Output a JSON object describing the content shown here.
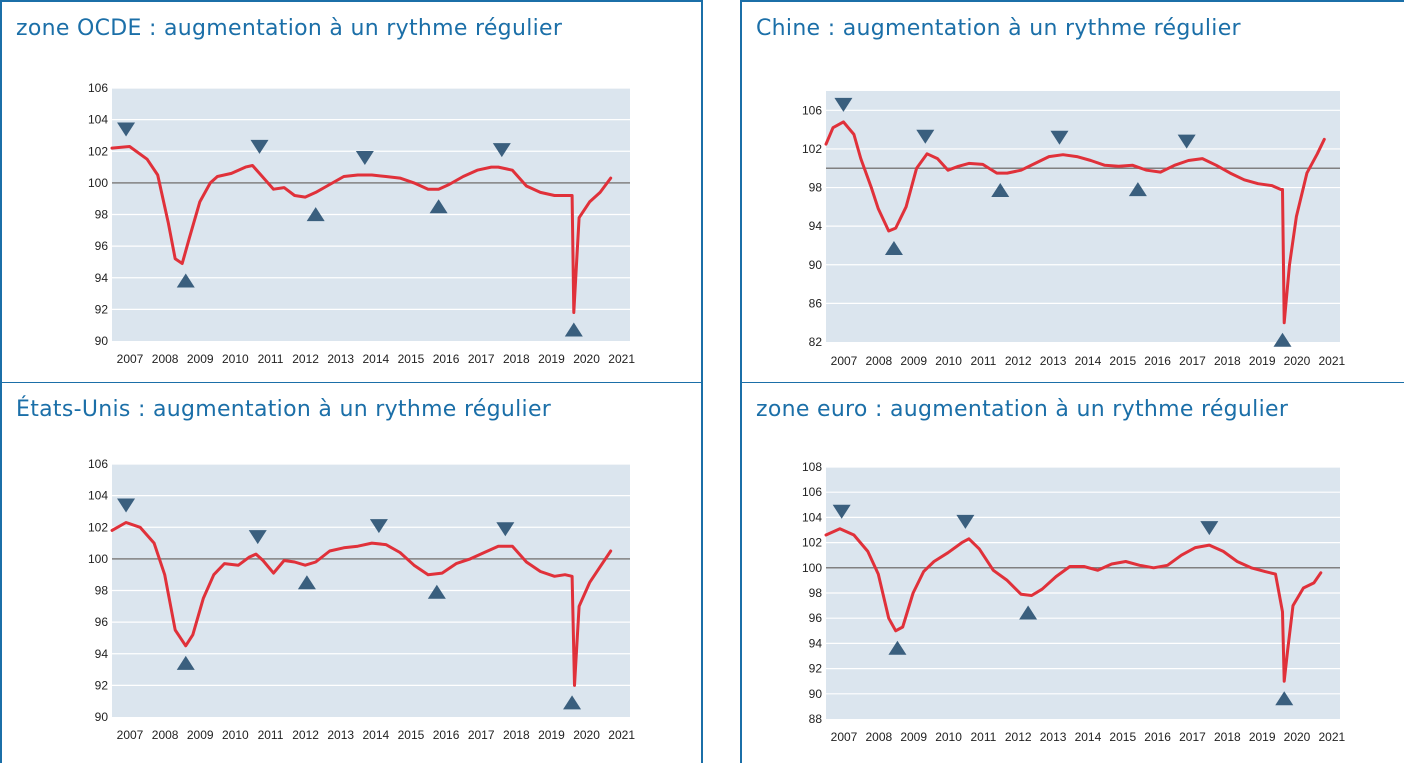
{
  "colors": {
    "title": "#1b6fa8",
    "plot_bg": "#dbe5ee",
    "line": "#e0313a",
    "baseline": "#808080",
    "marker": "#3a5f7e",
    "border": "#1b6fa8"
  },
  "chart_data": [
    {
      "type": "line",
      "title": "zone OCDE :  augmentation à un rythme régulier",
      "ylim": [
        90,
        106
      ],
      "yticks": [
        106,
        104,
        102,
        100,
        98,
        96,
        94,
        92,
        90
      ],
      "xlabels": [
        "2007",
        "2008",
        "2009",
        "2010",
        "2011",
        "2012",
        "2013",
        "2014",
        "2015",
        "2016",
        "2017",
        "2018",
        "2019",
        "2020",
        "2021"
      ],
      "baseline": 100,
      "grid": true,
      "series": [
        {
          "x": [
            2007.0,
            2007.5,
            2008.0,
            2008.3,
            2008.6,
            2008.8,
            2009.0,
            2009.2,
            2009.5,
            2009.8,
            2010.0,
            2010.4,
            2010.8,
            2011.0,
            2011.2,
            2011.6,
            2011.9,
            2012.2,
            2012.5,
            2012.8,
            2013.2,
            2013.6,
            2014.0,
            2014.4,
            2014.8,
            2015.2,
            2015.6,
            2016.0,
            2016.3,
            2016.6,
            2017.0,
            2017.4,
            2017.8,
            2018.0,
            2018.4,
            2018.8,
            2019.2,
            2019.6,
            2020.0,
            2020.1,
            2020.15,
            2020.3,
            2020.6,
            2020.9,
            2021.2
          ],
          "y": [
            102.2,
            102.3,
            101.5,
            100.5,
            97.5,
            95.2,
            94.9,
            96.5,
            98.8,
            100.0,
            100.4,
            100.6,
            101.0,
            101.1,
            100.6,
            99.6,
            99.7,
            99.2,
            99.1,
            99.4,
            99.9,
            100.4,
            100.5,
            100.5,
            100.4,
            100.3,
            100.0,
            99.6,
            99.6,
            99.9,
            100.4,
            100.8,
            101.0,
            101.0,
            100.8,
            99.8,
            99.4,
            99.2,
            99.2,
            99.2,
            91.8,
            97.8,
            98.8,
            99.4,
            100.3
          ]
        }
      ],
      "markers": [
        {
          "dir": "down",
          "x": 2007.4,
          "y": 102.3
        },
        {
          "dir": "up",
          "x": 2009.1,
          "y": 94.9
        },
        {
          "dir": "down",
          "x": 2011.2,
          "y": 101.2
        },
        {
          "dir": "up",
          "x": 2012.8,
          "y": 99.1
        },
        {
          "dir": "down",
          "x": 2014.2,
          "y": 100.5
        },
        {
          "dir": "up",
          "x": 2016.3,
          "y": 99.6
        },
        {
          "dir": "down",
          "x": 2018.1,
          "y": 101.0
        },
        {
          "dir": "up",
          "x": 2020.15,
          "y": 91.8
        }
      ]
    },
    {
      "type": "line",
      "title": "Chine : augmentation à un rythme régulier",
      "ylim": [
        82,
        108
      ],
      "yticks": [
        106,
        102,
        98,
        94,
        90,
        86,
        82
      ],
      "xlabels": [
        "2007",
        "2008",
        "2009",
        "2010",
        "2011",
        "2012",
        "2013",
        "2014",
        "2015",
        "2016",
        "2017",
        "2018",
        "2019",
        "2020",
        "2021"
      ],
      "baseline": 100,
      "grid": true,
      "series": [
        {
          "x": [
            2007.0,
            2007.2,
            2007.5,
            2007.8,
            2008.0,
            2008.3,
            2008.5,
            2008.8,
            2009.0,
            2009.3,
            2009.6,
            2009.9,
            2010.2,
            2010.5,
            2010.8,
            2011.1,
            2011.5,
            2011.9,
            2012.2,
            2012.6,
            2013.0,
            2013.4,
            2013.8,
            2014.2,
            2014.6,
            2015.0,
            2015.4,
            2015.8,
            2016.2,
            2016.6,
            2017.0,
            2017.4,
            2017.8,
            2018.2,
            2018.6,
            2019.0,
            2019.4,
            2019.8,
            2020.05,
            2020.1,
            2020.15,
            2020.3,
            2020.5,
            2020.8,
            2021.1,
            2021.3
          ],
          "y": [
            102.5,
            104.2,
            104.8,
            103.5,
            101.0,
            98.0,
            95.8,
            93.5,
            93.8,
            96.0,
            100.0,
            101.5,
            101.0,
            99.8,
            100.2,
            100.5,
            100.4,
            99.5,
            99.5,
            99.8,
            100.5,
            101.2,
            101.4,
            101.2,
            100.8,
            100.3,
            100.2,
            100.3,
            99.8,
            99.6,
            100.3,
            100.8,
            101.0,
            100.3,
            99.5,
            98.8,
            98.4,
            98.2,
            97.8,
            97.8,
            84.0,
            90.0,
            95.0,
            99.5,
            101.5,
            103.0
          ]
        }
      ],
      "markers": [
        {
          "dir": "down",
          "x": 2007.5,
          "y": 104.8
        },
        {
          "dir": "up",
          "x": 2008.95,
          "y": 93.5
        },
        {
          "dir": "down",
          "x": 2009.85,
          "y": 101.5
        },
        {
          "dir": "up",
          "x": 2012.0,
          "y": 99.5
        },
        {
          "dir": "down",
          "x": 2013.7,
          "y": 101.4
        },
        {
          "dir": "up",
          "x": 2015.95,
          "y": 99.6
        },
        {
          "dir": "down",
          "x": 2017.35,
          "y": 101.0
        },
        {
          "dir": "up",
          "x": 2020.1,
          "y": 84.0
        }
      ]
    },
    {
      "type": "line",
      "title": "États-Unis : augmentation à un rythme régulier",
      "ylim": [
        90,
        106
      ],
      "yticks": [
        106,
        104,
        102,
        100,
        98,
        96,
        94,
        92,
        90
      ],
      "xlabels": [
        "2007",
        "2008",
        "2009",
        "2010",
        "2011",
        "2012",
        "2013",
        "2014",
        "2015",
        "2016",
        "2017",
        "2018",
        "2019",
        "2020",
        "2021"
      ],
      "baseline": 100,
      "grid": true,
      "series": [
        {
          "x": [
            2007.0,
            2007.4,
            2007.8,
            2008.2,
            2008.5,
            2008.8,
            2009.1,
            2009.3,
            2009.6,
            2009.9,
            2010.2,
            2010.6,
            2010.9,
            2011.1,
            2011.3,
            2011.6,
            2011.9,
            2012.2,
            2012.5,
            2012.8,
            2013.2,
            2013.6,
            2014.0,
            2014.4,
            2014.8,
            2015.2,
            2015.6,
            2016.0,
            2016.4,
            2016.8,
            2017.2,
            2017.6,
            2018.0,
            2018.4,
            2018.8,
            2019.2,
            2019.6,
            2019.9,
            2020.1,
            2020.17,
            2020.3,
            2020.6,
            2020.9,
            2021.2
          ],
          "y": [
            101.8,
            102.3,
            102.0,
            101.0,
            99.0,
            95.5,
            94.5,
            95.2,
            97.5,
            99.0,
            99.7,
            99.6,
            100.1,
            100.3,
            99.9,
            99.1,
            99.9,
            99.8,
            99.6,
            99.8,
            100.5,
            100.7,
            100.8,
            101.0,
            100.9,
            100.4,
            99.6,
            99.0,
            99.1,
            99.7,
            100.0,
            100.4,
            100.8,
            100.8,
            99.8,
            99.2,
            98.9,
            99.0,
            98.9,
            92.0,
            97.0,
            98.5,
            99.5,
            100.5
          ]
        }
      ],
      "markers": [
        {
          "dir": "down",
          "x": 2007.4,
          "y": 102.3
        },
        {
          "dir": "up",
          "x": 2009.1,
          "y": 94.5
        },
        {
          "dir": "down",
          "x": 2011.15,
          "y": 100.3
        },
        {
          "dir": "up",
          "x": 2012.55,
          "y": 99.6
        },
        {
          "dir": "down",
          "x": 2014.6,
          "y": 101.0
        },
        {
          "dir": "up",
          "x": 2016.25,
          "y": 99.0
        },
        {
          "dir": "down",
          "x": 2018.2,
          "y": 100.8
        },
        {
          "dir": "up",
          "x": 2020.1,
          "y": 92.0
        }
      ]
    },
    {
      "type": "line",
      "title": "zone euro : augmentation à un rythme régulier",
      "ylim": [
        88,
        108
      ],
      "yticks": [
        108,
        106,
        104,
        102,
        100,
        98,
        96,
        94,
        92,
        90,
        88
      ],
      "xlabels": [
        "2007",
        "2008",
        "2009",
        "2010",
        "2011",
        "2012",
        "2013",
        "2014",
        "2015",
        "2016",
        "2017",
        "2018",
        "2019",
        "2020",
        "2021"
      ],
      "baseline": 100,
      "grid": true,
      "series": [
        {
          "x": [
            2007.0,
            2007.4,
            2007.8,
            2008.2,
            2008.5,
            2008.8,
            2009.0,
            2009.2,
            2009.5,
            2009.8,
            2010.1,
            2010.5,
            2010.9,
            2011.1,
            2011.4,
            2011.8,
            2012.2,
            2012.6,
            2012.9,
            2013.2,
            2013.6,
            2014.0,
            2014.4,
            2014.8,
            2015.2,
            2015.6,
            2016.0,
            2016.4,
            2016.8,
            2017.2,
            2017.6,
            2018.0,
            2018.4,
            2018.8,
            2019.2,
            2019.6,
            2019.9,
            2020.1,
            2020.15,
            2020.25,
            2020.4,
            2020.7,
            2021.0,
            2021.2
          ],
          "y": [
            102.6,
            103.1,
            102.6,
            101.3,
            99.5,
            96.0,
            95.0,
            95.3,
            98.0,
            99.7,
            100.5,
            101.2,
            102.0,
            102.3,
            101.5,
            99.8,
            99.0,
            97.9,
            97.8,
            98.3,
            99.3,
            100.1,
            100.1,
            99.8,
            100.3,
            100.5,
            100.2,
            100.0,
            100.2,
            101.0,
            101.6,
            101.8,
            101.3,
            100.5,
            100.0,
            99.7,
            99.5,
            96.5,
            91.0,
            93.5,
            97.0,
            98.4,
            98.8,
            99.6
          ]
        }
      ],
      "markers": [
        {
          "dir": "down",
          "x": 2007.45,
          "y": 103.1
        },
        {
          "dir": "up",
          "x": 2009.05,
          "y": 95.0
        },
        {
          "dir": "down",
          "x": 2011.0,
          "y": 102.3
        },
        {
          "dir": "up",
          "x": 2012.8,
          "y": 97.8
        },
        {
          "dir": "down",
          "x": 2018.0,
          "y": 101.8
        },
        {
          "dir": "up",
          "x": 2020.15,
          "y": 91.0
        }
      ]
    }
  ]
}
